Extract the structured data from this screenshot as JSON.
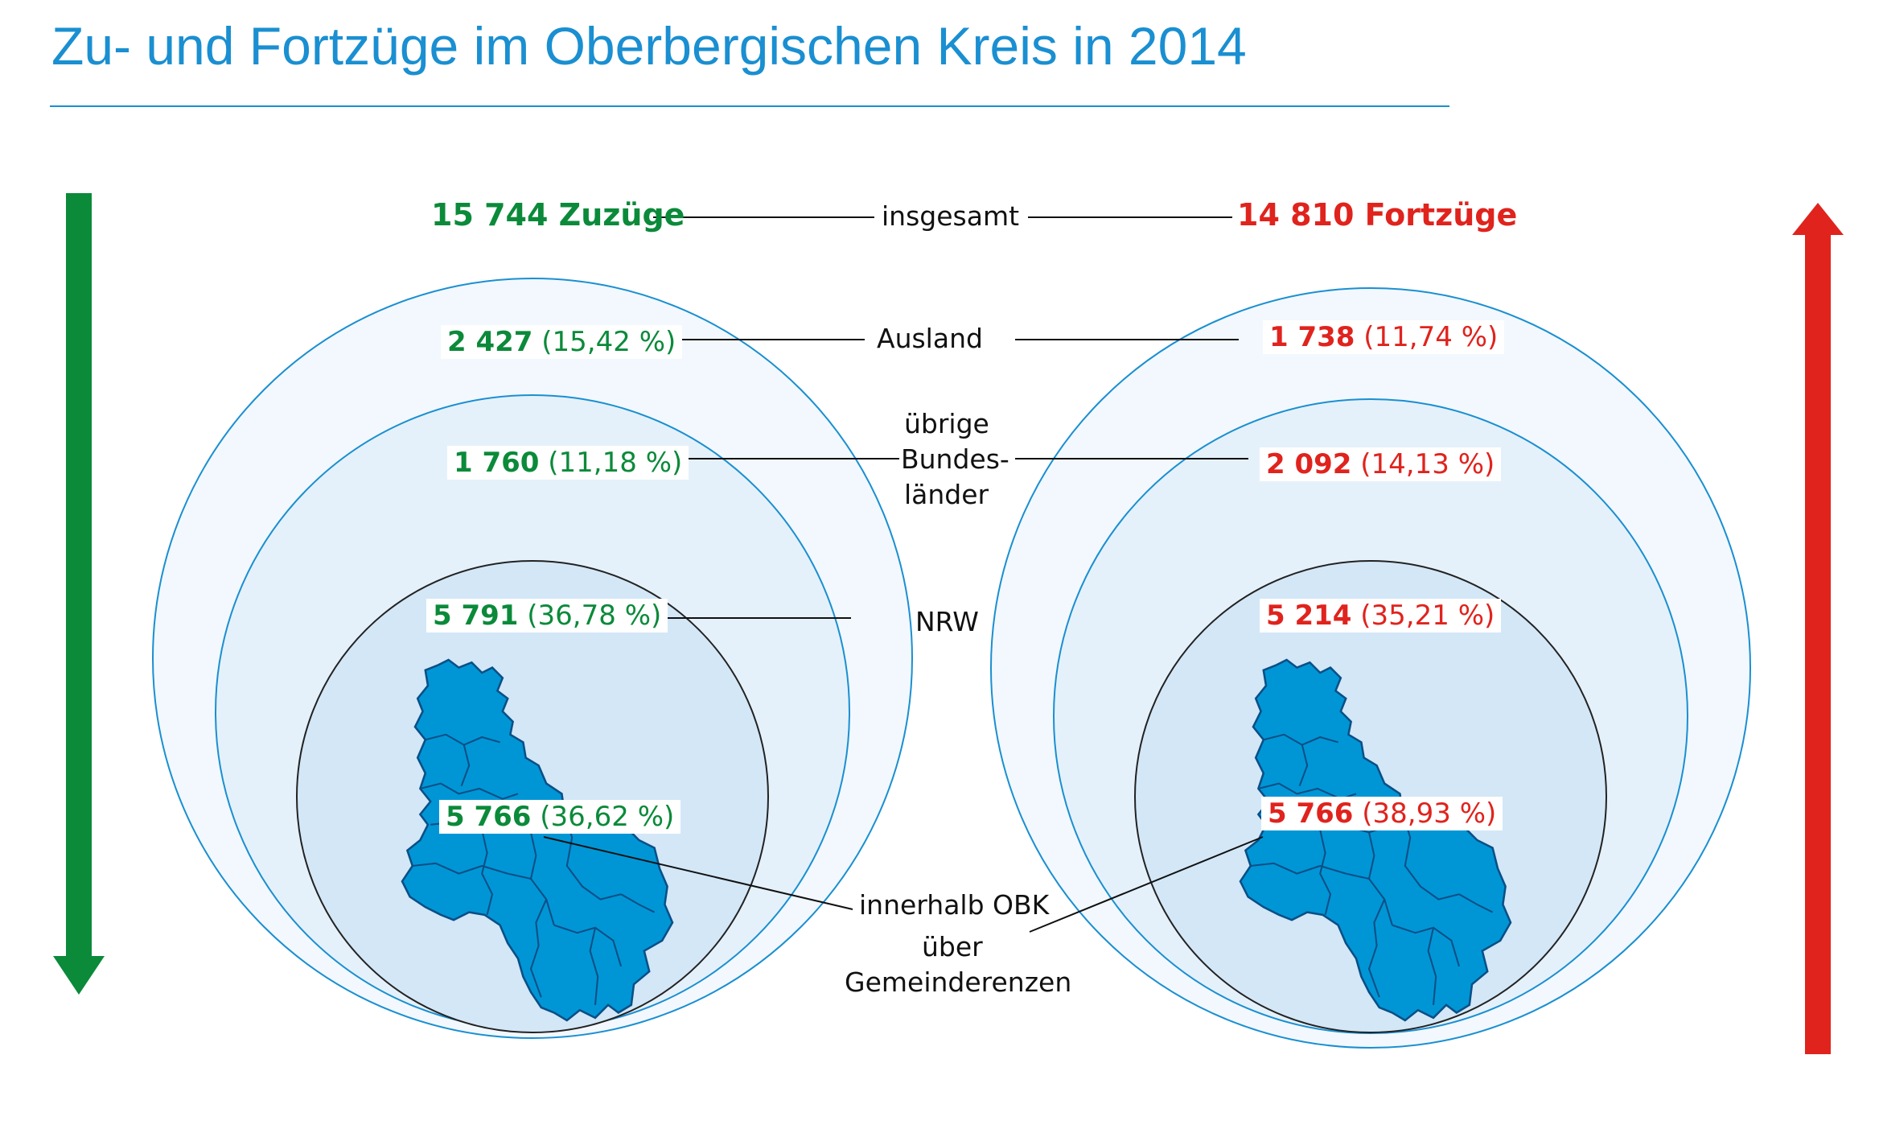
{
  "title": "Zu- und Fortzüge im Oberbergischen Kreis in 2014",
  "colors": {
    "title": "#1a8fd1",
    "zuzuege": "#0b8a3a",
    "fortzuege": "#e0231d",
    "circle_stroke": "#1a8fd1",
    "map_fill": "#0096d6"
  },
  "totals": {
    "zuzuege": "15 744 Zuzüge",
    "label": "insgesamt",
    "fortzuege": "14 810 Fortzüge"
  },
  "categories": {
    "ausland": "Ausland",
    "bundeslaender_1": "übrige",
    "bundeslaender_2": "Bundes-",
    "bundeslaender_3": "länder",
    "nrw": "NRW",
    "obk_1": "innerhalb OBK",
    "obk_2": "über",
    "obk_3": "Gemeinderenzen"
  },
  "zuzuege": {
    "ausland": {
      "value": "2 427",
      "pct": "(15,42 %)"
    },
    "bundeslaender": {
      "value": "1 760",
      "pct": "(11,18 %)"
    },
    "nrw": {
      "value": "5 791",
      "pct": "(36,78 %)"
    },
    "obk": {
      "value": "5 766",
      "pct": "(36,62 %)"
    }
  },
  "fortzuege": {
    "ausland": {
      "value": "1 738",
      "pct": "(11,74 %)"
    },
    "bundeslaender": {
      "value": "2 092",
      "pct": "(14,13 %)"
    },
    "nrw": {
      "value": "5 214",
      "pct": "(35,21 %)"
    },
    "obk": {
      "value": "5 766",
      "pct": "(38,93 %)"
    }
  },
  "icons": {
    "left_arrow": "arrow-down-icon",
    "right_arrow": "arrow-up-icon",
    "map": "district-map-icon"
  }
}
